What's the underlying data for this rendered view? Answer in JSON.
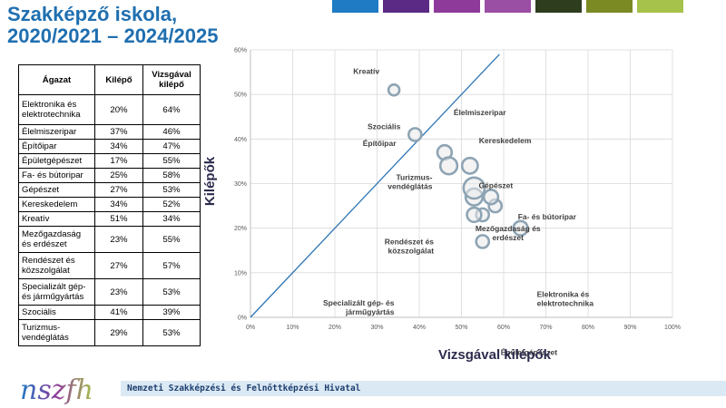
{
  "title": {
    "line1": "Szakképző iskola,",
    "line2": "2020/2021 – 2024/2025"
  },
  "header_colors": [
    "#1e7bc4",
    "#5a2a84",
    "#8e3a9a",
    "#9b4fa4",
    "#2d3d1e",
    "#7c8a24",
    "#a7c24a"
  ],
  "table": {
    "headers": [
      "Ágazat",
      "Kilépő",
      "Vizsgával kilépő"
    ],
    "rows": [
      {
        "name": "Elektronika és elektrotechnika",
        "kilepo": "20%",
        "vizsgaval": "64%"
      },
      {
        "name": "Élelmiszeripar",
        "kilepo": "37%",
        "vizsgaval": "46%"
      },
      {
        "name": "Építőipar",
        "kilepo": "34%",
        "vizsgaval": "47%"
      },
      {
        "name": "Épületgépészet",
        "kilepo": "17%",
        "vizsgaval": "55%"
      },
      {
        "name": "Fa- és bútoripar",
        "kilepo": "25%",
        "vizsgaval": "58%"
      },
      {
        "name": "Gépészet",
        "kilepo": "27%",
        "vizsgaval": "53%"
      },
      {
        "name": "Kereskedelem",
        "kilepo": "34%",
        "vizsgaval": "52%"
      },
      {
        "name": "Kreatív",
        "kilepo": "51%",
        "vizsgaval": "34%"
      },
      {
        "name": "Mezőgazdaság és erdészet",
        "kilepo": "23%",
        "vizsgaval": "55%"
      },
      {
        "name": "Rendészet és közszolgálat",
        "kilepo": "27%",
        "vizsgaval": "57%"
      },
      {
        "name": "Specializált gép- és járműgyártás",
        "kilepo": "23%",
        "vizsgaval": "53%"
      },
      {
        "name": "Szociális",
        "kilepo": "41%",
        "vizsgaval": "39%"
      },
      {
        "name": "Turizmus-vendéglátás",
        "kilepo": "29%",
        "vizsgaval": "53%"
      }
    ]
  },
  "chart_data": {
    "type": "scatter",
    "title": "",
    "xlabel": "Vizsgával kilépők",
    "ylabel": "Kilépők",
    "xlim": [
      0,
      100
    ],
    "ylim": [
      0,
      60
    ],
    "x_ticks": [
      "0%",
      "10%",
      "20%",
      "30%",
      "40%",
      "50%",
      "60%",
      "70%",
      "80%",
      "90%",
      "100%"
    ],
    "y_ticks": [
      "0%",
      "10%",
      "20%",
      "30%",
      "40%",
      "50%",
      "60%"
    ],
    "grid": true,
    "reference_line": {
      "from": [
        0,
        0
      ],
      "to": [
        59,
        59
      ]
    },
    "points": [
      {
        "label": "Kreatív",
        "x": 34,
        "y": 51,
        "size": 2
      },
      {
        "label": "Szociális",
        "x": 39,
        "y": 41,
        "size": 3
      },
      {
        "label": "Élelmiszeripar",
        "x": 46,
        "y": 37,
        "size": 4
      },
      {
        "label": "Kereskedelem",
        "x": 52,
        "y": 34,
        "size": 5
      },
      {
        "label": "Építőipar",
        "x": 47,
        "y": 34,
        "size": 6
      },
      {
        "label": "Gépészet",
        "x": 53,
        "y": 27,
        "size": 6
      },
      {
        "label": "Fa- és bútoripar",
        "x": 58,
        "y": 25,
        "size": 3
      },
      {
        "label": "Turizmus-vendéglátás",
        "x": 53,
        "y": 29,
        "size": 10
      },
      {
        "label": "Mezőgazdaság és erdészet",
        "x": 55,
        "y": 23,
        "size": 3
      },
      {
        "label": "Rendészet és közszolgálat",
        "x": 57,
        "y": 27,
        "size": 4
      },
      {
        "label": "Specializált gép- és járműgyártás",
        "x": 53,
        "y": 23,
        "size": 4
      },
      {
        "label": "Elektronika és elektrotechnika",
        "x": 64,
        "y": 20,
        "size": 4
      },
      {
        "label": "Épületgépészet",
        "x": 55,
        "y": 17,
        "size": 3
      }
    ],
    "annotations": [
      {
        "lines": [
          "Kreatív"
        ],
        "anchor": "end",
        "dx": 8,
        "dy": -18
      },
      {
        "lines": [
          "Szociális"
        ],
        "anchor": "end",
        "dx": 8,
        "dy": -6
      },
      {
        "lines": [
          "Élelmiszeripar"
        ],
        "anchor": "start",
        "dx": 120,
        "dy": -41
      },
      {
        "lines": [
          "Kereskedelem"
        ],
        "anchor": "start",
        "dx": 120,
        "dy": -25
      },
      {
        "lines": [
          "Építőipar"
        ],
        "anchor": "end",
        "dx": 50,
        "dy": -22
      },
      {
        "lines": [
          "Gépészet"
        ],
        "anchor": "start",
        "dx": 115,
        "dy": -10
      },
      {
        "lines": [
          "Fa- és bútoripar"
        ],
        "anchor": "start",
        "dx": 135,
        "dy": 15
      },
      {
        "lines": [
          "Turizmus-",
          "vendéglátás"
        ],
        "anchor": "end",
        "dx": 38,
        "dy": -9
      },
      {
        "lines": [
          "Mezőgazdaság és",
          "erdészet"
        ],
        "anchor": "middle",
        "dx": 128,
        "dy": 18
      },
      {
        "lines": [
          "Rendészet és",
          "közszolgálat"
        ],
        "anchor": "end",
        "dx": 55,
        "dy": 52
      },
      {
        "lines": [
          "Specializált gép- és",
          "járműgyártás"
        ],
        "anchor": "end",
        "dx": 80,
        "dy": 100
      },
      {
        "lines": [
          "Elektronika és",
          "elektrotechnika"
        ],
        "anchor": "start",
        "dx": 128,
        "dy": 76
      },
      {
        "lines": [
          "Épületgépészet"
        ],
        "anchor": "start",
        "dx": 130,
        "dy": 125
      }
    ]
  },
  "footer": {
    "logo_text": "nszfh",
    "org_name": "Nemzeti Szakképzési és Felnőttképzési Hivatal"
  }
}
